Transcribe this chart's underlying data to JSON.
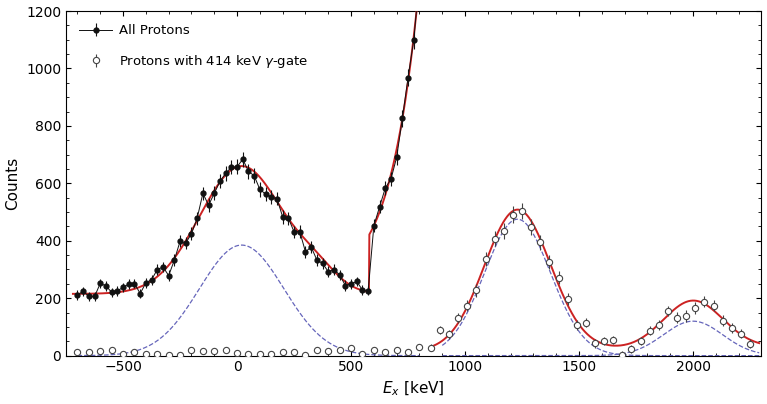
{
  "title": "",
  "xlabel": "$E_x$ [keV]",
  "ylabel": "Counts",
  "xlim": [
    -750,
    2300
  ],
  "ylim": [
    0,
    1200
  ],
  "yticks": [
    0,
    200,
    400,
    600,
    800,
    1000,
    1200
  ],
  "xticks": [
    -500,
    0,
    500,
    1000,
    1500,
    2000
  ],
  "legend1": "All Protons",
  "legend2": "Protons with 414 keV $\\gamma$-gate",
  "bg_color": "#ffffff",
  "fit_color": "#cc2222",
  "gauss_color": "#6666bb",
  "data_color1": "#111111",
  "data_color2": "#444444"
}
